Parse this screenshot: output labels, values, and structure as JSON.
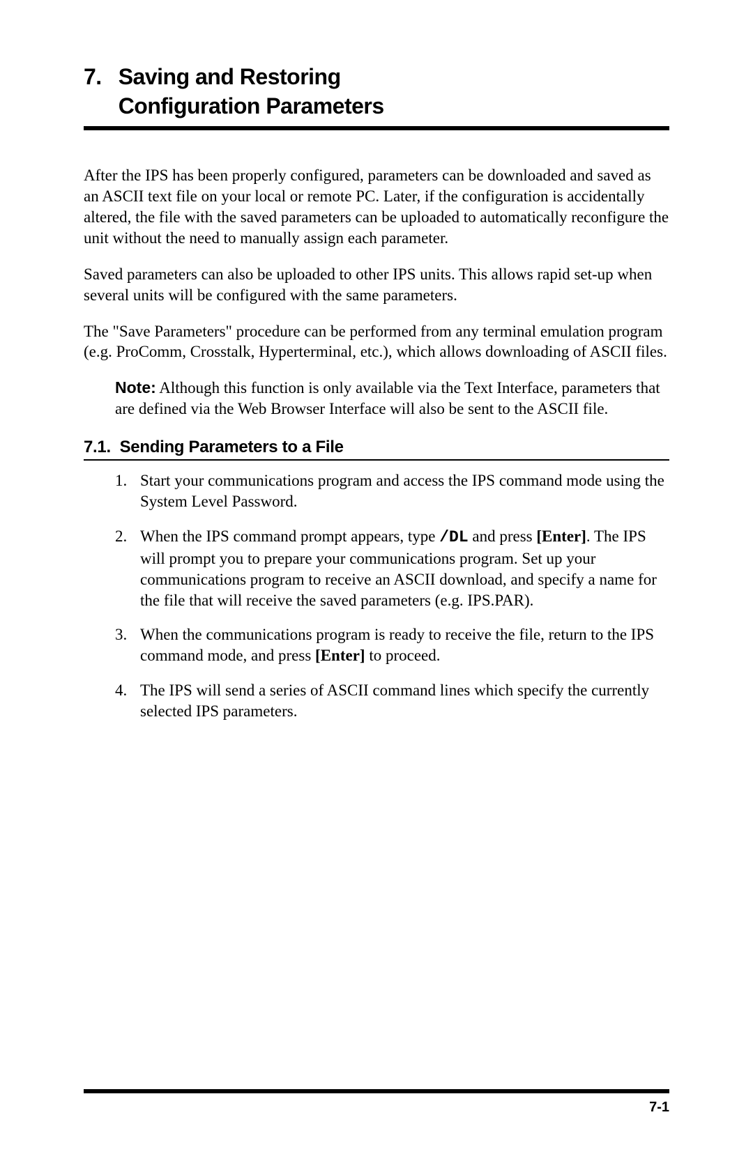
{
  "chapter": {
    "number": "7.",
    "title_line1": "Saving and Restoring",
    "title_line2": "Configuration Parameters"
  },
  "paragraphs": {
    "p1": "After the IPS has been properly configured, parameters can be downloaded and saved as an ASCII text file on your local or remote PC.  Later, if the configuration is accidentally altered, the file with the saved parameters can be uploaded to automatically reconfigure the unit without the need to manually assign each parameter.",
    "p2": "Saved parameters can also be uploaded to other IPS units.  This allows rapid set-up when several units will be configured with the same parameters.",
    "p3": "The \"Save Parameters\" procedure can be performed from any terminal emulation program (e.g. ProComm, Crosstalk, Hyperterminal, etc.), which allows downloading of ASCII files."
  },
  "note": {
    "label": "Note:",
    "text": "  Although this function is only available via the Text Interface, parameters that are defined via the Web Browser Interface will also be sent to the ASCII file."
  },
  "section": {
    "number": "7.1.",
    "title": "Sending Parameters to a File"
  },
  "list": {
    "item1": {
      "num": "1.",
      "text": "Start your communications program and access the IPS command mode using the System Level Password."
    },
    "item2": {
      "num": "2.",
      "text_before": "When the IPS command prompt appears, type ",
      "command": "/DL",
      "text_mid": " and press ",
      "enter": "[Enter]",
      "text_after": ". The IPS will prompt you to prepare your communications program.  Set up your communications program to receive an ASCII download, and specify a name for the file that will receive the saved parameters (e.g. IPS.PAR)."
    },
    "item3": {
      "num": "3.",
      "text_before": "When the communications program is ready to receive the file, return to the IPS command mode, and press ",
      "enter": "[Enter]",
      "text_after": " to proceed."
    },
    "item4": {
      "num": "4.",
      "text": "The IPS will send a series of ASCII command lines which specify the currently selected IPS parameters."
    }
  },
  "page_number": "7-1"
}
